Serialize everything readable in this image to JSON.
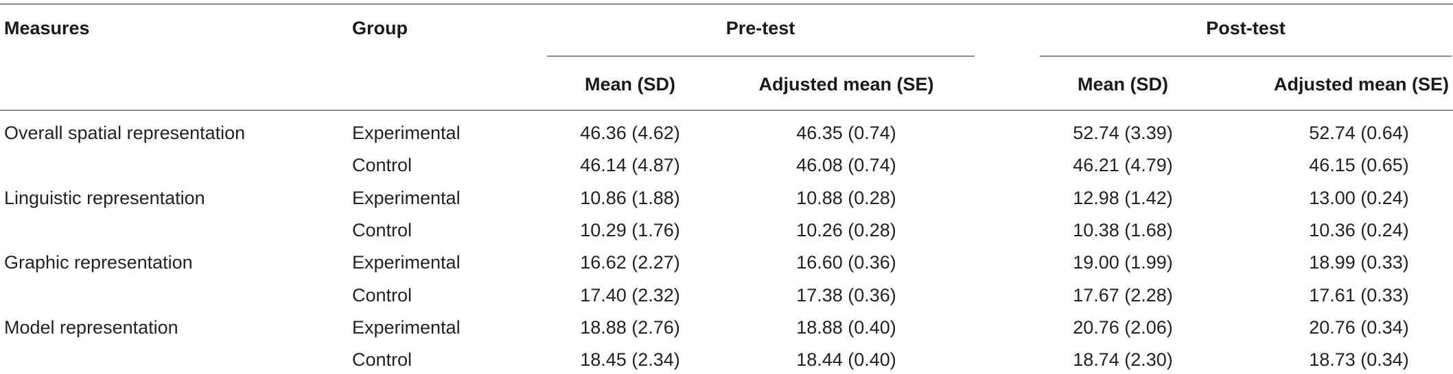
{
  "table": {
    "headers": {
      "measures": "Measures",
      "group": "Group",
      "pre_test": "Pre-test",
      "post_test": "Post-test",
      "pre_mean_sd": "Mean (SD)",
      "pre_adj_mean_se": "Adjusted mean (SE)",
      "post_mean_sd": "Mean (SD)",
      "post_adj_mean_se": "Adjusted mean (SE)"
    },
    "rows": [
      {
        "measure": "Overall spatial representation",
        "group": "Experimental",
        "pre_mean": "46.36 (4.62)",
        "pre_adj": "46.35 (0.74)",
        "post_mean": "52.74 (3.39)",
        "post_adj": "52.74 (0.64)"
      },
      {
        "measure": "",
        "group": "Control",
        "pre_mean": "46.14 (4.87)",
        "pre_adj": "46.08 (0.74)",
        "post_mean": "46.21 (4.79)",
        "post_adj": "46.15 (0.65)"
      },
      {
        "measure": "Linguistic representation",
        "group": "Experimental",
        "pre_mean": "10.86 (1.88)",
        "pre_adj": "10.88 (0.28)",
        "post_mean": "12.98 (1.42)",
        "post_adj": "13.00 (0.24)"
      },
      {
        "measure": "",
        "group": "Control",
        "pre_mean": "10.29 (1.76)",
        "pre_adj": "10.26 (0.28)",
        "post_mean": "10.38 (1.68)",
        "post_adj": "10.36 (0.24)"
      },
      {
        "measure": "Graphic representation",
        "group": "Experimental",
        "pre_mean": "16.62 (2.27)",
        "pre_adj": "16.60 (0.36)",
        "post_mean": "19.00 (1.99)",
        "post_adj": "18.99 (0.33)"
      },
      {
        "measure": "",
        "group": "Control",
        "pre_mean": "17.40 (2.32)",
        "pre_adj": "17.38 (0.36)",
        "post_mean": "17.67 (2.28)",
        "post_adj": "17.61 (0.33)"
      },
      {
        "measure": "Model representation",
        "group": "Experimental",
        "pre_mean": "18.88 (2.76)",
        "pre_adj": "18.88 (0.40)",
        "post_mean": "20.76 (2.06)",
        "post_adj": "20.76 (0.34)"
      },
      {
        "measure": "",
        "group": "Control",
        "pre_mean": "18.45 (2.34)",
        "pre_adj": "18.44 (0.40)",
        "post_mean": "18.74 (2.30)",
        "post_adj": "18.73 (0.34)"
      }
    ]
  }
}
